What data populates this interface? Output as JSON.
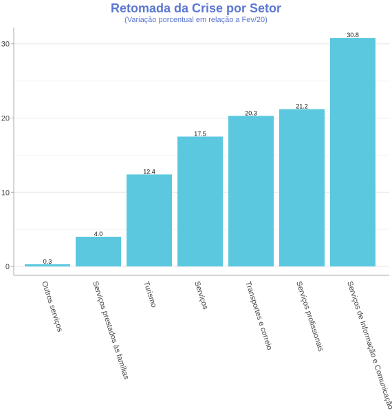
{
  "chart_data": {
    "type": "bar",
    "title": "Retomada da Crise por Setor",
    "subtitle": "(Variação porcentual em relação a Fev/20)",
    "categories": [
      "Outros serviços",
      "Serviços prestados às famílias",
      "Turismo",
      "Serviços",
      "Transportes e correio",
      "Serviços profissionais",
      "Serviços de Informação e Comunicação"
    ],
    "values": [
      0.3,
      4.0,
      12.4,
      17.5,
      20.3,
      21.2,
      30.8
    ],
    "value_labels": [
      "0.3",
      "4.0",
      "12.4",
      "17.5",
      "20.3",
      "21.2",
      "30.8"
    ],
    "yticks": [
      "0",
      "10",
      "20",
      "30"
    ],
    "ylim": [
      -1.2,
      32.2
    ],
    "xlabel": "",
    "ylabel": "",
    "grid": true,
    "bar_color": "#5bc8e0"
  }
}
